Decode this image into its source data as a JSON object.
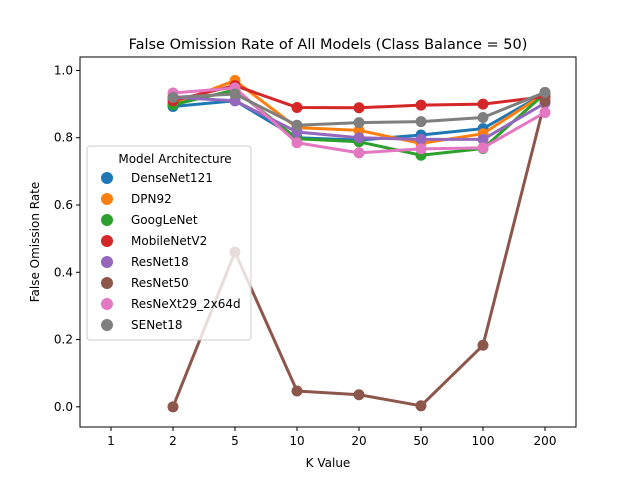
{
  "chart_data": {
    "type": "line",
    "title": "False Omission Rate of All Models (Class Balance = 50)",
    "xlabel": "K Value",
    "ylabel": "False Omission Rate",
    "categories": [
      "1",
      "2",
      "5",
      "10",
      "20",
      "50",
      "100",
      "200"
    ],
    "ylim": [
      -0.06,
      1.04
    ],
    "yticks": [
      "0.0",
      "0.2",
      "0.4",
      "0.6",
      "0.8",
      "1.0"
    ],
    "grid": false,
    "legend_title": "Model Architecture",
    "legend_position": "left",
    "series": [
      {
        "name": "DenseNet121",
        "color": "#1f77b4",
        "values": [
          null,
          0.893,
          0.91,
          0.8,
          0.793,
          0.808,
          0.827,
          0.932
        ]
      },
      {
        "name": "DPN92",
        "color": "#ff7f0e",
        "values": [
          null,
          0.9,
          0.97,
          0.83,
          0.822,
          0.783,
          0.812,
          0.932
        ]
      },
      {
        "name": "GoogLeNet",
        "color": "#2ca02c",
        "values": [
          null,
          0.898,
          0.942,
          0.797,
          0.788,
          0.748,
          0.768,
          0.932
        ]
      },
      {
        "name": "MobileNetV2",
        "color": "#d62728",
        "values": [
          null,
          0.91,
          0.955,
          0.89,
          0.889,
          0.897,
          0.9,
          0.922
        ]
      },
      {
        "name": "ResNet18",
        "color": "#9467bd",
        "values": [
          null,
          0.92,
          0.91,
          0.817,
          0.8,
          0.795,
          0.795,
          0.903
        ]
      },
      {
        "name": "ResNet50",
        "color": "#8c564b",
        "values": [
          null,
          0.0,
          0.46,
          0.047,
          0.036,
          0.003,
          0.183,
          0.91
        ]
      },
      {
        "name": "ResNeXt29_2x64d",
        "color": "#e377c2",
        "values": [
          null,
          0.933,
          0.948,
          0.785,
          0.755,
          0.767,
          0.77,
          0.875
        ]
      },
      {
        "name": "SENet18",
        "color": "#7f7f7f",
        "values": [
          null,
          0.92,
          0.93,
          0.837,
          0.845,
          0.848,
          0.86,
          0.935
        ]
      }
    ]
  }
}
